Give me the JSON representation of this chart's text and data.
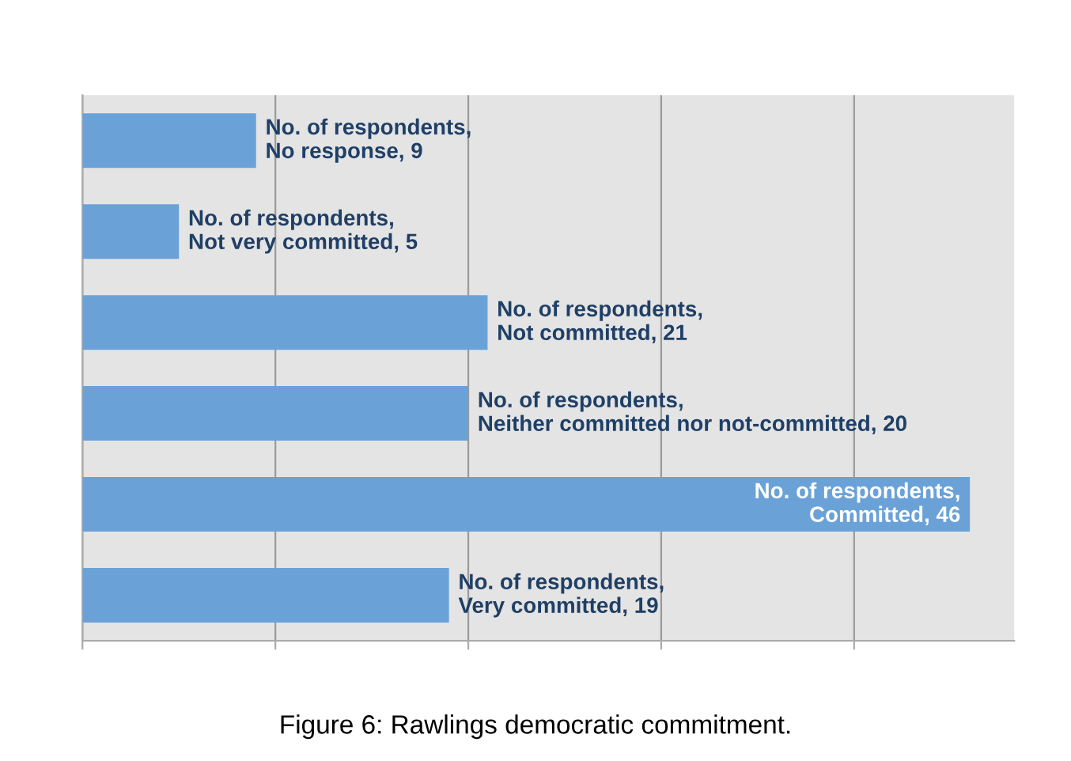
{
  "chart_data": {
    "type": "bar",
    "orientation": "horizontal",
    "categories": [
      null,
      null,
      null,
      null,
      null,
      null
    ],
    "series": [
      {
        "color": "#6aa2d8",
        "values": [
          9,
          5,
          21,
          20,
          46,
          19
        ],
        "value_labels": [
          "No. of respondents, No response, 9",
          "No. of respondents, Not very committed, 5",
          "No. of respondents, Not committed, 21",
          "No. of respondents, Neither committed nor not-committed, 20",
          "No. of respondents, Committed, 46",
          "No. of respondents, Very committed, 19"
        ]
      }
    ],
    "grid": "x",
    "tick_labels": false,
    "annotations": [
      "Figure 6: Rawlings democratic commitment."
    ]
  }
}
